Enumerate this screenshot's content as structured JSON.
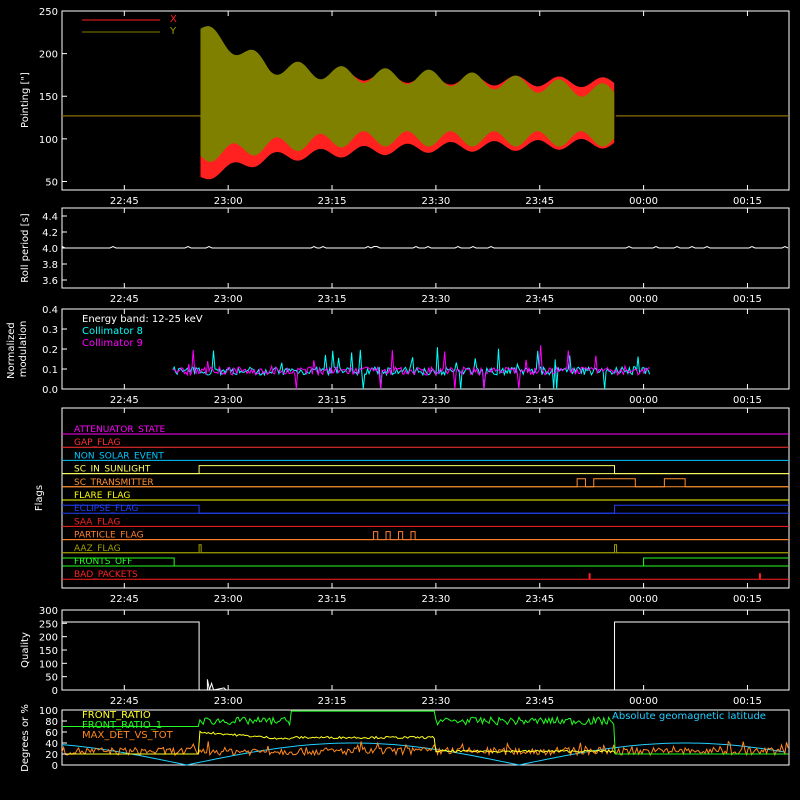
{
  "time_axis": {
    "ticks": [
      "22:45",
      "23:00",
      "23:15",
      "23:30",
      "23:45",
      "00:00",
      "00:15"
    ]
  },
  "chart_data": [
    {
      "type": "line",
      "ylabel": "Pointing [\"]",
      "ylim": [
        40,
        250
      ],
      "yticks": [
        "250",
        "200",
        "150",
        "100",
        "50"
      ],
      "series": [
        {
          "name": "X",
          "color": "#ff2020",
          "envelope": {
            "start": "22:56",
            "end": "23:56",
            "upper": [
              [
                22.93,
                205
              ],
              [
                23.1,
                175
              ],
              [
                23.3,
                175
              ],
              [
                23.5,
                170
              ],
              [
                23.7,
                168
              ],
              [
                23.93,
                166
              ]
            ],
            "lower": [
              [
                22.93,
                55
              ],
              [
                23.1,
                78
              ],
              [
                23.3,
                85
              ],
              [
                23.5,
                90
              ],
              [
                23.7,
                92
              ],
              [
                23.93,
                95
              ]
            ]
          },
          "baseline": 127
        },
        {
          "name": "Y",
          "color": "#808000",
          "envelope": {
            "start": "22:56",
            "end": "23:56",
            "upper": [
              [
                22.93,
                230
              ],
              [
                23.1,
                185
              ],
              [
                23.3,
                175
              ],
              [
                23.5,
                172
              ],
              [
                23.7,
                165
              ],
              [
                23.93,
                155
              ]
            ],
            "lower": [
              [
                22.93,
                80
              ],
              [
                23.1,
                92
              ],
              [
                23.3,
                100
              ],
              [
                23.5,
                100
              ],
              [
                23.7,
                100
              ],
              [
                23.93,
                100
              ]
            ]
          },
          "baseline": 127
        }
      ]
    },
    {
      "type": "line",
      "ylabel": "Roll period [s]",
      "ylim": [
        3.5,
        4.5
      ],
      "yticks": [
        "4.4",
        "4.2",
        "4.0",
        "3.8",
        "3.6"
      ],
      "series": [
        {
          "name": "",
          "color": "#ffffff",
          "value": 4.0
        }
      ]
    },
    {
      "type": "line",
      "ylabel": "Normalized modulation",
      "ylim": [
        0,
        0.4
      ],
      "yticks": [
        "0.4",
        "0.3",
        "0.2",
        "0.1",
        "0.0"
      ],
      "annotation": "Energy band: 12-25 keV",
      "series": [
        {
          "name": "Collimator 8",
          "color": "#00ffff",
          "range": [
            "22:52",
            "00:01"
          ],
          "mean": 0.09
        },
        {
          "name": "Collimator 9",
          "color": "#ff00ff",
          "range": [
            "22:52",
            "00:01"
          ],
          "mean": 0.09
        }
      ]
    },
    {
      "type": "line",
      "ylabel": "Flags",
      "flags": [
        {
          "name": "ATTENUATOR_STATE",
          "color": "#ff00ff"
        },
        {
          "name": "GAP_FLAG",
          "color": "#ff3030"
        },
        {
          "name": "NON_SOLAR_EVENT",
          "color": "#00c8ff"
        },
        {
          "name": "SC_IN_SUNLIGHT",
          "color": "#ffff60"
        },
        {
          "name": "SC_TRANSMITTER",
          "color": "#ff9030"
        },
        {
          "name": "FLARE_FLAG",
          "color": "#ffff00"
        },
        {
          "name": "ECLIPSE_FLAG",
          "color": "#2040ff"
        },
        {
          "name": "SAA_FLAG",
          "color": "#ff2020"
        },
        {
          "name": "PARTICLE_FLAG",
          "color": "#ff8030"
        },
        {
          "name": "AAZ_FLAG",
          "color": "#a0a000"
        },
        {
          "name": "FRONTS_OFF",
          "color": "#20ff20"
        },
        {
          "name": "BAD_PACKETS",
          "color": "#ff2020"
        }
      ]
    },
    {
      "type": "line",
      "ylabel": "Quality",
      "ylim": [
        0,
        300
      ],
      "yticks": [
        "300",
        "250",
        "200",
        "150",
        "100",
        "50",
        "0"
      ],
      "series": [
        {
          "name": "",
          "color": "#ffffff"
        }
      ]
    },
    {
      "type": "line",
      "ylabel": "Degrees or %",
      "ylim": [
        0,
        100
      ],
      "yticks": [
        "100",
        "80",
        "60",
        "40",
        "20",
        "0"
      ],
      "series": [
        {
          "name": "FRONT_RATIO",
          "color": "#ffff20"
        },
        {
          "name": "FRONT_RATIO_1",
          "color": "#20ff20"
        },
        {
          "name": "MAX_DET_VS_TOT",
          "color": "#ff8820"
        },
        {
          "name": "Absolute geomagnetic latitude",
          "color": "#20d0ff"
        }
      ]
    }
  ]
}
